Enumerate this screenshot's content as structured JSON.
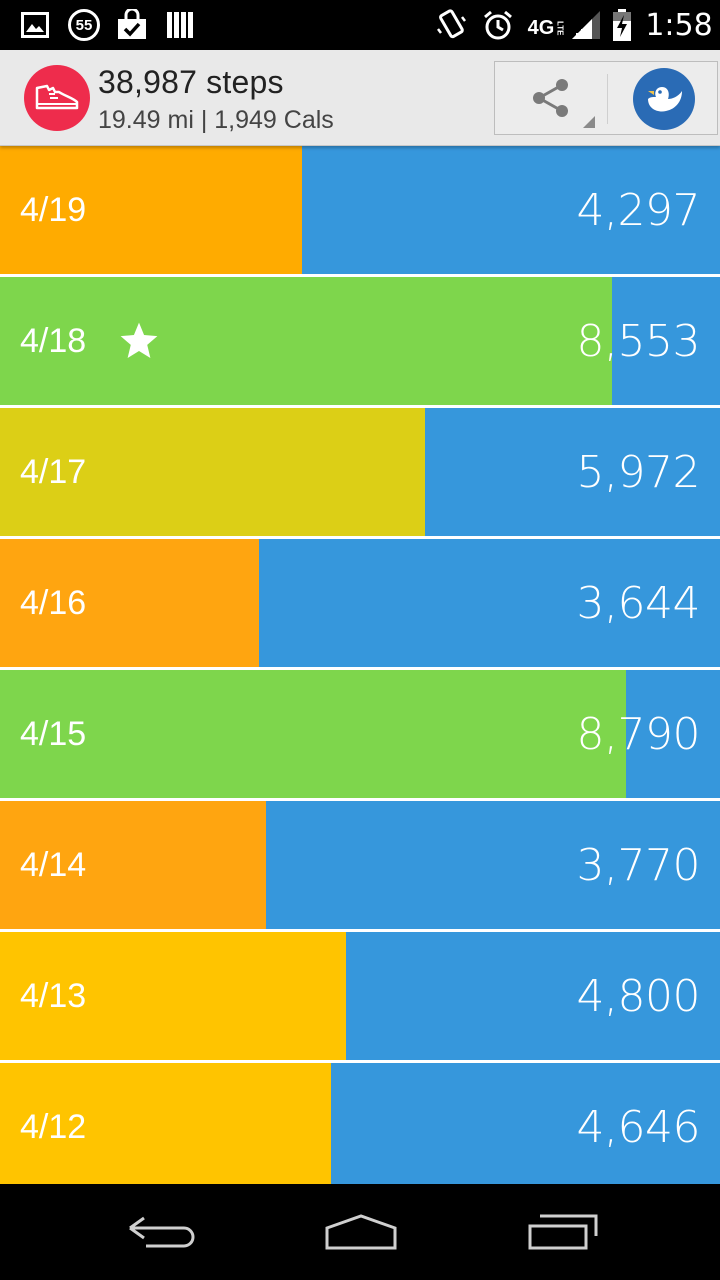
{
  "status_bar": {
    "notification_count": "55",
    "network": "4G",
    "network_sub": "LTE",
    "time": "1:58"
  },
  "header": {
    "steps_total": "38,987 steps",
    "summary": "19.49 mi | 1,949 Cals"
  },
  "colors": {
    "remaining": "#3697dc",
    "goal_met": "#7ed64c",
    "high": "#dccf16",
    "mid": "#ffc400",
    "low": "#ffa510"
  },
  "days": [
    {
      "date": "4/19",
      "steps": "4,297",
      "progress": 0.42,
      "color": "#ffab00",
      "starred": false
    },
    {
      "date": "4/18",
      "steps": "8,553",
      "progress": 0.85,
      "color": "#7ed64c",
      "starred": true
    },
    {
      "date": "4/17",
      "steps": "5,972",
      "progress": 0.59,
      "color": "#dccf16",
      "starred": false
    },
    {
      "date": "4/16",
      "steps": "3,644",
      "progress": 0.36,
      "color": "#ffa510",
      "starred": false
    },
    {
      "date": "4/15",
      "steps": "8,790",
      "progress": 0.87,
      "color": "#7ed64c",
      "starred": false
    },
    {
      "date": "4/14",
      "steps": "3,770",
      "progress": 0.37,
      "color": "#ffa510",
      "starred": false
    },
    {
      "date": "4/13",
      "steps": "4,800",
      "progress": 0.48,
      "color": "#ffc400",
      "starred": false
    },
    {
      "date": "4/12",
      "steps": "4,646",
      "progress": 0.46,
      "color": "#ffc400",
      "starred": false
    }
  ]
}
